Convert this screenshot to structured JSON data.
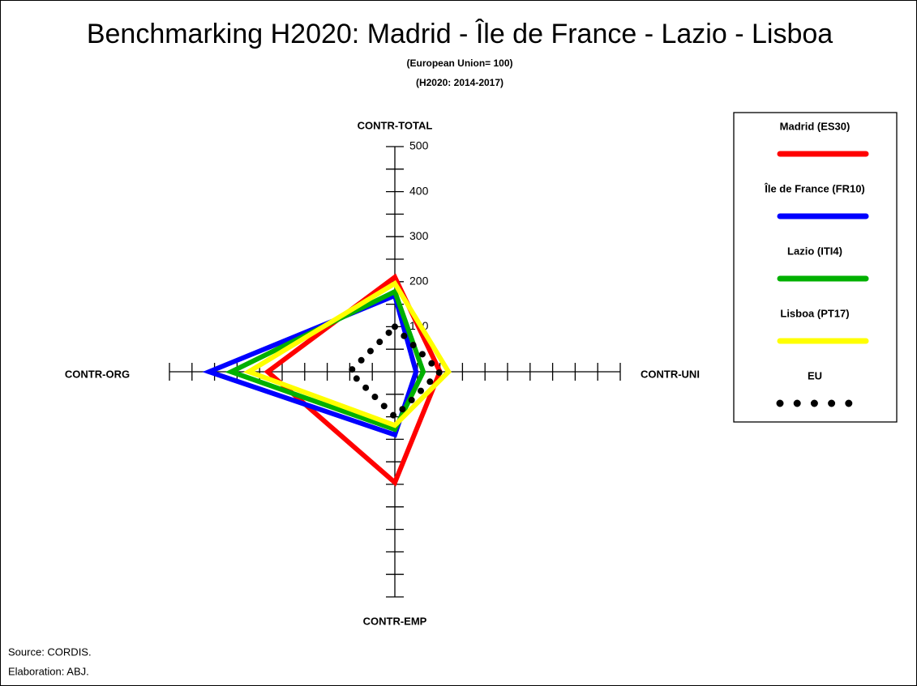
{
  "chart_data": {
    "type": "radar",
    "title": "Benchmarking H2020: Madrid - Île de France - Lazio - Lisboa",
    "subtitle": [
      "(European Union= 100)",
      "(H2020: 2014-2017)"
    ],
    "categories": [
      "CONTR-TOTAL",
      "CONTR-UNI",
      "CONTR-EMP",
      "CONTR-ORG"
    ],
    "rlim": [
      0,
      500
    ],
    "rticks": [
      100,
      200,
      300,
      400,
      500
    ],
    "series": [
      {
        "name": "Madrid (ES30)",
        "color": "#ff0000",
        "values": [
          210,
          100,
          246,
          282
        ]
      },
      {
        "name": "Île de France (FR10)",
        "color": "#0000ff",
        "values": [
          169,
          47,
          140,
          412
        ]
      },
      {
        "name": "Lazio (ITI4)",
        "color": "#00b000",
        "values": [
          178,
          63,
          128,
          363
        ]
      },
      {
        "name": "Lisboa (PT17)",
        "color": "#ffff00",
        "values": [
          196,
          119,
          119,
          324
        ]
      },
      {
        "name": "EU",
        "color": "#000000",
        "dotted": true,
        "values": [
          100,
          100,
          100,
          100
        ]
      }
    ],
    "notes": [
      "Source: CORDIS.",
      "Elaboration: ABJ."
    ]
  }
}
